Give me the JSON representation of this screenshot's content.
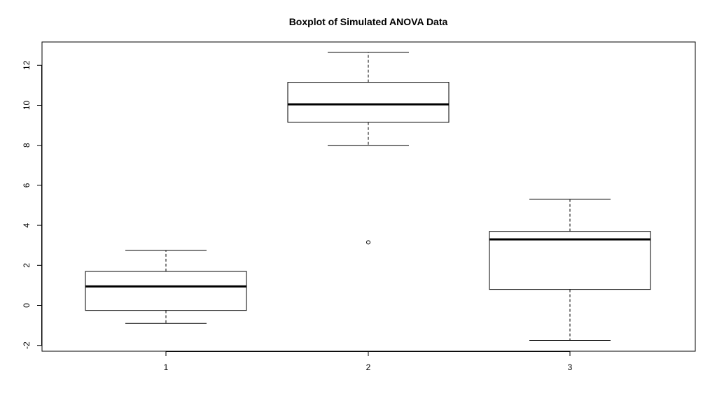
{
  "chart_data": {
    "type": "boxplot",
    "title": "Boxplot of Simulated ANOVA Data",
    "xlabel": "",
    "ylabel": "",
    "categories": [
      "1",
      "2",
      "3"
    ],
    "ylim": [
      -2.2,
      13.2
    ],
    "y_ticks": [
      -2,
      0,
      2,
      4,
      6,
      8,
      10,
      12
    ],
    "grid": false,
    "boxes": [
      {
        "category": "1",
        "whisker_low": -0.9,
        "q1": -0.25,
        "median": 0.95,
        "q3": 1.7,
        "whisker_high": 2.75,
        "outliers": []
      },
      {
        "category": "2",
        "whisker_low": 8.0,
        "q1": 9.15,
        "median": 10.05,
        "q3": 11.15,
        "whisker_high": 12.65,
        "outliers": [
          3.15
        ]
      },
      {
        "category": "3",
        "whisker_low": -1.75,
        "q1": 0.8,
        "median": 3.3,
        "q3": 3.7,
        "whisker_high": 5.3,
        "outliers": []
      }
    ]
  }
}
